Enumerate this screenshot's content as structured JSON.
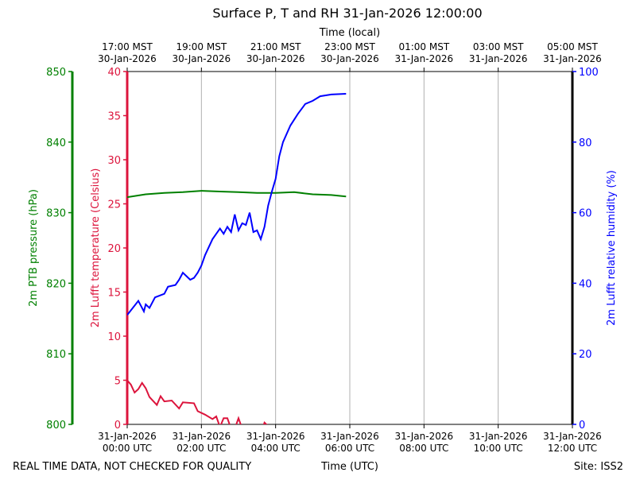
{
  "chart_data": {
    "type": "line",
    "title": "Surface P, T and RH 31-Jan-2026 12:00:00",
    "xlabel": "Time (UTC)",
    "xlabel_top": "Time (local)",
    "xlim_hours_utc": [
      0,
      12
    ],
    "x_ticks_bottom": [
      [
        "31-Jan-2026",
        "00:00 UTC"
      ],
      [
        "31-Jan-2026",
        "02:00 UTC"
      ],
      [
        "31-Jan-2026",
        "04:00 UTC"
      ],
      [
        "31-Jan-2026",
        "06:00 UTC"
      ],
      [
        "31-Jan-2026",
        "08:00 UTC"
      ],
      [
        "31-Jan-2026",
        "10:00 UTC"
      ],
      [
        "31-Jan-2026",
        "12:00 UTC"
      ]
    ],
    "x_ticks_top": [
      [
        "17:00 MST",
        "30-Jan-2026"
      ],
      [
        "19:00 MST",
        "30-Jan-2026"
      ],
      [
        "21:00 MST",
        "30-Jan-2026"
      ],
      [
        "23:00 MST",
        "30-Jan-2026"
      ],
      [
        "01:00 MST",
        "31-Jan-2026"
      ],
      [
        "03:00 MST",
        "31-Jan-2026"
      ],
      [
        "05:00 MST",
        "31-Jan-2026"
      ]
    ],
    "grid": "vertical",
    "axes": {
      "pressure": {
        "label": "2m PTB pressure (hPa)",
        "ylim": [
          800,
          850
        ],
        "ticks": [
          "800",
          "810",
          "820",
          "830",
          "840",
          "850"
        ],
        "color": "#008000"
      },
      "temperature": {
        "label": "2m Lufft temperature (Celsius)",
        "ylim": [
          0,
          40
        ],
        "ticks": [
          "0",
          "5",
          "10",
          "15",
          "20",
          "25",
          "30",
          "35",
          "40"
        ],
        "color": "#dc143c"
      },
      "rh": {
        "label": "2m Lufft relative humidity (%)",
        "ylim": [
          0,
          100
        ],
        "ticks": [
          "0",
          "20",
          "40",
          "60",
          "80",
          "100"
        ],
        "color": "#0000ff"
      }
    },
    "series": [
      {
        "name": "pressure",
        "axis": "pressure",
        "color": "#008000",
        "x": [
          0,
          0.5,
          1,
          1.5,
          2,
          2.5,
          3,
          3.5,
          4,
          4.5,
          5,
          5.5,
          5.9
        ],
        "y": [
          832.2,
          832.6,
          832.8,
          832.9,
          833.1,
          833.0,
          832.9,
          832.8,
          832.8,
          832.9,
          832.6,
          832.5,
          832.3
        ]
      },
      {
        "name": "temperature",
        "axis": "temperature",
        "color": "#dc143c",
        "x": [
          0,
          0.1,
          0.2,
          0.3,
          0.4,
          0.5,
          0.6,
          0.8,
          0.9,
          1.0,
          1.2,
          1.4,
          1.5,
          1.8,
          1.9,
          2.1,
          2.3,
          2.4,
          2.5,
          2.6,
          2.7,
          2.8,
          2.9,
          3.0,
          3.1,
          3.3,
          3.6,
          3.7,
          3.8
        ],
        "y": [
          5.0,
          4.5,
          3.6,
          4.0,
          4.7,
          4.1,
          3.1,
          2.2,
          3.2,
          2.6,
          2.7,
          1.8,
          2.5,
          2.4,
          1.5,
          1.1,
          0.6,
          0.9,
          -0.3,
          0.7,
          0.7,
          -0.5,
          -0.5,
          0.7,
          -0.5,
          -1,
          -1,
          0.2,
          -0.2
        ]
      },
      {
        "name": "relative humidity",
        "axis": "rh",
        "color": "#0000ff",
        "x": [
          0,
          0.15,
          0.3,
          0.45,
          0.5,
          0.6,
          0.75,
          1.0,
          1.1,
          1.3,
          1.4,
          1.5,
          1.7,
          1.8,
          1.9,
          2.0,
          2.1,
          2.3,
          2.5,
          2.6,
          2.7,
          2.8,
          2.9,
          3.0,
          3.1,
          3.2,
          3.3,
          3.4,
          3.5,
          3.6,
          3.7,
          3.8,
          3.9,
          4.0,
          4.1,
          4.2,
          4.4,
          4.6,
          4.8,
          5.0,
          5.2,
          5.5,
          5.9
        ],
        "y": [
          31,
          33,
          35,
          32,
          34,
          33,
          36,
          37,
          39,
          39.5,
          41,
          43,
          41,
          41.5,
          43,
          45,
          48,
          52.5,
          55.5,
          54,
          56,
          54.5,
          59.5,
          55,
          57,
          56.5,
          60,
          54.5,
          55,
          52.5,
          56,
          62,
          66,
          69.6,
          76,
          80,
          84.7,
          88,
          90.8,
          91.7,
          93,
          93.5,
          93.7
        ]
      }
    ]
  },
  "footer": {
    "left": "REAL TIME DATA, NOT CHECKED FOR QUALITY",
    "right": "Site: ISS2"
  }
}
